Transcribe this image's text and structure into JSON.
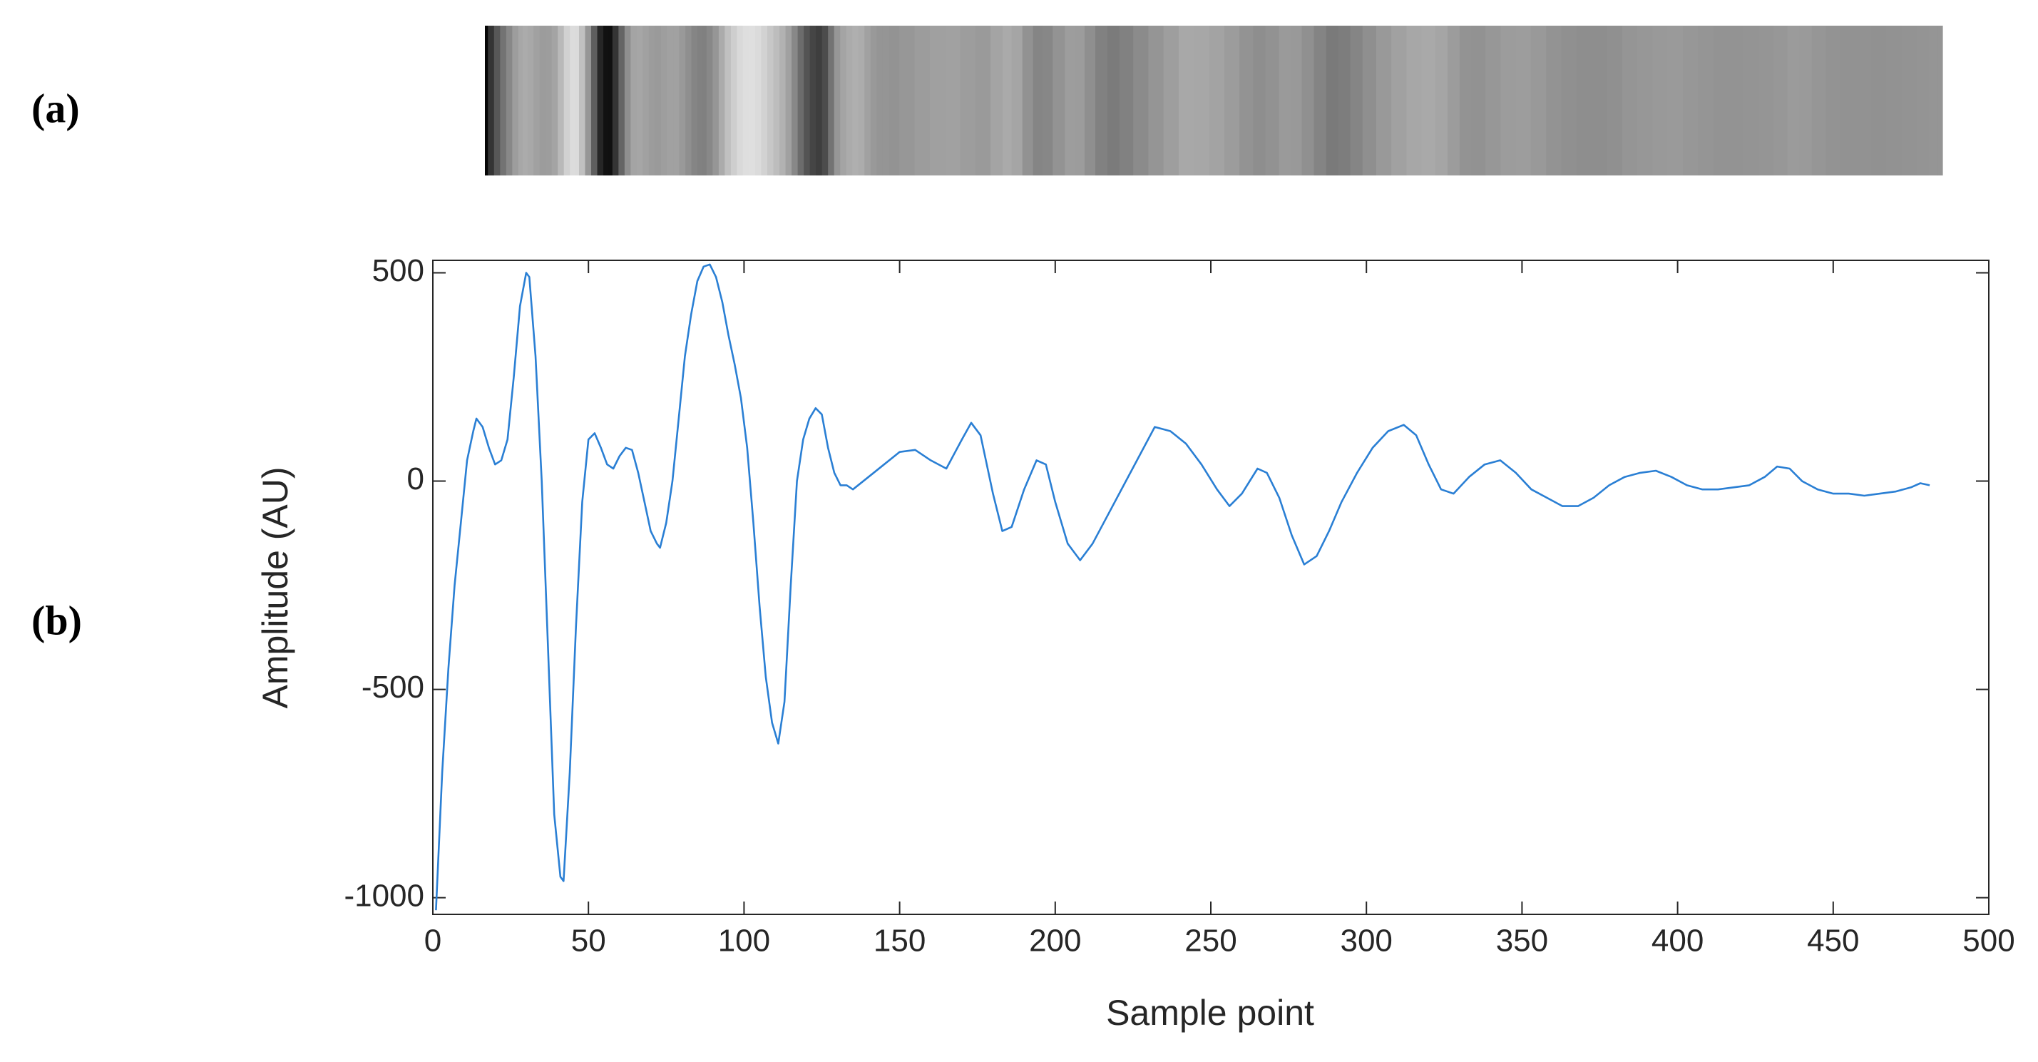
{
  "chart_data": {
    "type": "line",
    "panel_labels": [
      "(a)",
      "(b)"
    ],
    "xlabel": "Sample point",
    "ylabel": "Amplitude (AU)",
    "color": "#2a7fd4",
    "xlim": [
      0,
      500
    ],
    "ylim": [
      -1040,
      530
    ],
    "xticks": [
      0,
      50,
      100,
      150,
      200,
      250,
      300,
      350,
      400,
      450,
      500
    ],
    "yticks": [
      -1000,
      -500,
      0,
      500
    ],
    "x": [
      1,
      3,
      5,
      7,
      9,
      11,
      13,
      14,
      16,
      18,
      20,
      22,
      24,
      26,
      28,
      30,
      31,
      33,
      35,
      37,
      39,
      41,
      42,
      44,
      46,
      48,
      50,
      52,
      54,
      56,
      58,
      60,
      62,
      64,
      66,
      68,
      70,
      72,
      73,
      75,
      77,
      79,
      81,
      83,
      85,
      87,
      89,
      91,
      93,
      95,
      97,
      99,
      101,
      103,
      105,
      107,
      109,
      111,
      113,
      115,
      117,
      119,
      121,
      123,
      125,
      127,
      129,
      131,
      133,
      135,
      140,
      145,
      150,
      155,
      160,
      165,
      170,
      173,
      176,
      180,
      183,
      186,
      190,
      194,
      197,
      200,
      204,
      208,
      212,
      217,
      222,
      227,
      232,
      237,
      242,
      247,
      252,
      256,
      260,
      265,
      268,
      272,
      276,
      280,
      284,
      288,
      292,
      297,
      302,
      307,
      312,
      316,
      320,
      324,
      328,
      333,
      338,
      343,
      348,
      353,
      358,
      363,
      368,
      373,
      378,
      383,
      388,
      393,
      398,
      403,
      408,
      413,
      418,
      423,
      428,
      432,
      436,
      440,
      445,
      450,
      455,
      460,
      465,
      470,
      475,
      478,
      481
    ],
    "values": [
      -1030,
      -700,
      -450,
      -250,
      -100,
      50,
      120,
      150,
      130,
      80,
      40,
      50,
      100,
      250,
      420,
      500,
      490,
      300,
      0,
      -400,
      -800,
      -950,
      -960,
      -700,
      -350,
      -50,
      100,
      115,
      80,
      40,
      30,
      60,
      80,
      75,
      20,
      -50,
      -120,
      -150,
      -160,
      -100,
      0,
      150,
      300,
      400,
      480,
      515,
      520,
      490,
      430,
      350,
      280,
      200,
      80,
      -100,
      -300,
      -470,
      -580,
      -630,
      -530,
      -250,
      0,
      100,
      150,
      175,
      160,
      80,
      20,
      -10,
      -10,
      -20,
      10,
      40,
      70,
      75,
      50,
      30,
      100,
      140,
      110,
      -30,
      -120,
      -110,
      -20,
      50,
      40,
      -50,
      -150,
      -190,
      -150,
      -80,
      -10,
      60,
      130,
      120,
      90,
      40,
      -20,
      -60,
      -30,
      30,
      20,
      -40,
      -130,
      -200,
      -180,
      -120,
      -50,
      20,
      80,
      120,
      135,
      110,
      40,
      -20,
      -30,
      10,
      40,
      50,
      20,
      -20,
      -40,
      -60,
      -60,
      -40,
      -10,
      10,
      20,
      25,
      10,
      -10,
      -20,
      -20,
      -15,
      -10,
      10,
      35,
      30,
      0,
      -20,
      -30,
      -30,
      -35,
      -30,
      -25,
      -15,
      -5,
      -10
    ]
  }
}
